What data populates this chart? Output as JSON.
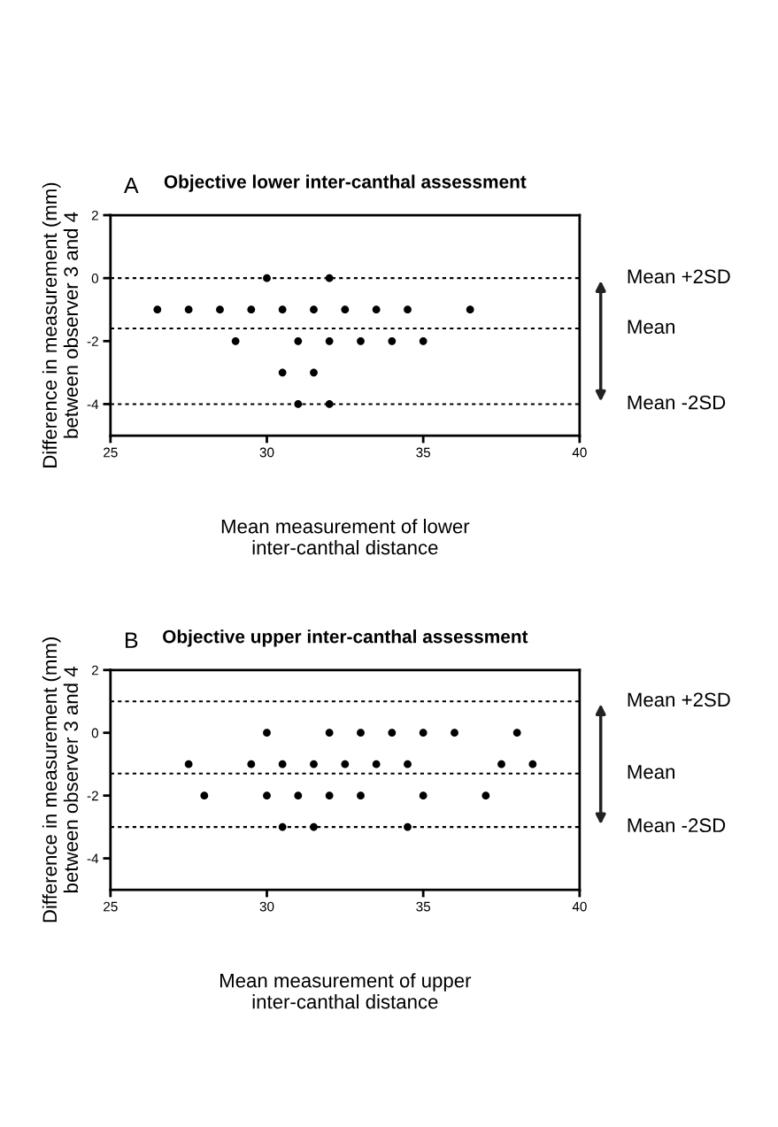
{
  "chart_data": [
    {
      "type": "scatter",
      "title": "Objective lower inter-canthal assessment",
      "annotations": [
        "A"
      ],
      "xlabel": "Mean measurement of lower\ninter-canthal distance",
      "ylabel": "Difference in measurement (mm)\nbetween observer 3 and 4",
      "x": [
        30,
        32,
        26.5,
        27.5,
        28.5,
        29.5,
        30.5,
        31.5,
        32.5,
        33.5,
        34.5,
        36.5,
        29,
        31,
        32,
        33,
        34,
        35,
        30.5,
        31.5,
        31,
        32
      ],
      "values": [
        0,
        0,
        -1,
        -1,
        -1,
        -1,
        -1,
        -1,
        -1,
        -1,
        -1,
        -1,
        -2,
        -2,
        -2,
        -2,
        -2,
        -2,
        -3,
        -3,
        -4,
        -4
      ],
      "color": "#000000",
      "marker": "circle",
      "grid": false,
      "xlim": [
        25,
        40
      ],
      "xticks": [
        25,
        30,
        35,
        40
      ],
      "ylim": [
        -5,
        2
      ],
      "yticks": [
        {
          "value": 2,
          "label": "2"
        },
        {
          "value": 0,
          "label": "0"
        },
        {
          "value": -2,
          "label": "-2"
        },
        {
          "value": -4,
          "label": "-4"
        }
      ],
      "ref_lines": [
        {
          "axis": "y",
          "value": 0,
          "label": "Mean +2SD",
          "color": "#000000",
          "line_style": "dotted"
        },
        {
          "axis": "y",
          "value": -1.6,
          "label": "Mean",
          "color": "#000000",
          "line_style": "dotted"
        },
        {
          "axis": "y",
          "value": -4,
          "label": "Mean -2SD",
          "color": "#000000",
          "line_style": "dotted"
        }
      ]
    },
    {
      "type": "scatter",
      "title": "Objective upper inter-canthal assessment",
      "annotations": [
        "B"
      ],
      "xlabel": "Mean measurement of upper\ninter-canthal distance",
      "ylabel": "Difference in measurement (mm)\nbetween observer 3 and 4",
      "x": [
        30,
        32,
        33,
        34,
        35,
        36,
        38,
        27.5,
        29.5,
        30.5,
        31.5,
        32.5,
        33.5,
        34.5,
        37.5,
        38.5,
        28,
        30,
        31,
        32,
        33,
        35,
        37,
        30.5,
        31.5,
        34.5
      ],
      "values": [
        0,
        0,
        0,
        0,
        0,
        0,
        0,
        -1,
        -1,
        -1,
        -1,
        -1,
        -1,
        -1,
        -1,
        -1,
        -2,
        -2,
        -2,
        -2,
        -2,
        -2,
        -2,
        -3,
        -3,
        -3
      ],
      "color": "#000000",
      "marker": "circle",
      "grid": false,
      "xlim": [
        25,
        40
      ],
      "xticks": [
        25,
        30,
        35,
        40
      ],
      "ylim": [
        -5,
        2
      ],
      "yticks": [
        {
          "value": 2,
          "label": "2"
        },
        {
          "value": 0,
          "label": "0"
        },
        {
          "value": -2,
          "label": "-2"
        },
        {
          "value": -4,
          "label": "-4"
        }
      ],
      "ref_lines": [
        {
          "axis": "y",
          "value": 1,
          "label": "Mean +2SD",
          "color": "#000000",
          "line_style": "dotted"
        },
        {
          "axis": "y",
          "value": -1.3,
          "label": "Mean",
          "color": "#000000",
          "line_style": "dotted"
        },
        {
          "axis": "y",
          "value": -3,
          "label": "Mean -2SD",
          "color": "#000000",
          "line_style": "dotted"
        }
      ]
    }
  ]
}
